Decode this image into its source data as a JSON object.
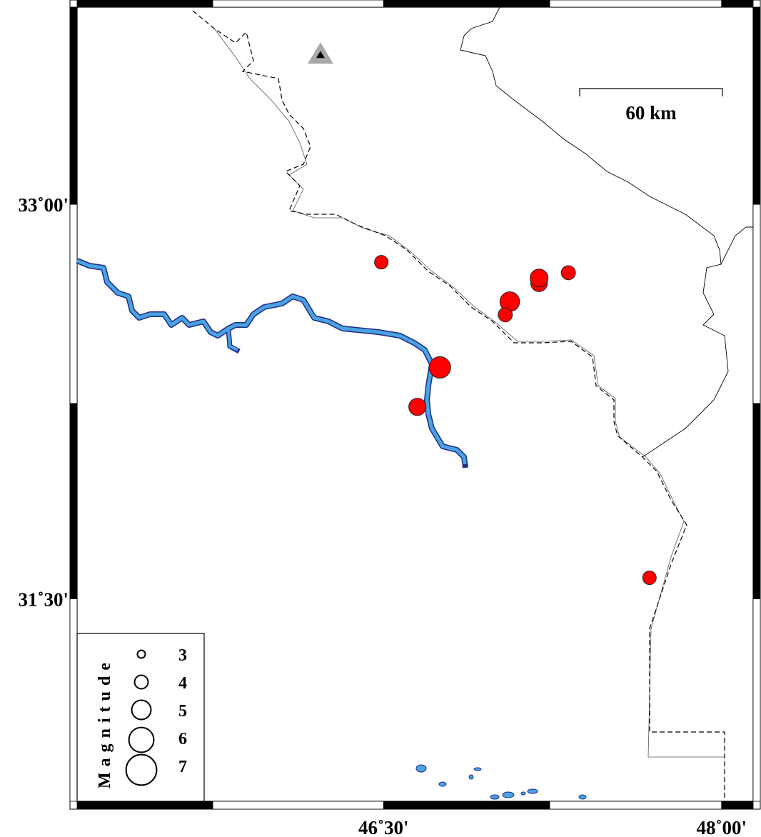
{
  "map": {
    "lon_range": [
      45.14,
      48.14
    ],
    "lat_range": [
      30.73,
      33.75
    ],
    "lon_ticks": [
      {
        "value": 46.5,
        "label": "46˚30'"
      },
      {
        "value": 48.0,
        "label": "48˚00'"
      }
    ],
    "lat_ticks": [
      {
        "value": 33.0,
        "label": "33˚00'"
      },
      {
        "value": 31.5,
        "label": "31˚30'"
      }
    ],
    "scale_bar": {
      "label": "60 km",
      "length_km": 60
    },
    "colors": {
      "event": "#ff0000",
      "river": "#4aa3e0",
      "river_outline": "#1f2a8a",
      "station": "#a9a9a9"
    }
  },
  "station": {
    "icon": "triangle-icon",
    "lon": 46.22,
    "lat": 33.57
  },
  "events": [
    {
      "lon": 46.49,
      "lat": 32.78,
      "mag": 3.0
    },
    {
      "lon": 46.75,
      "lat": 32.38,
      "mag": 4.3
    },
    {
      "lon": 46.65,
      "lat": 32.23,
      "mag": 3.6
    },
    {
      "lon": 47.06,
      "lat": 32.63,
      "mag": 4.0
    },
    {
      "lon": 47.04,
      "lat": 32.58,
      "mag": 3.1
    },
    {
      "lon": 47.19,
      "lat": 32.7,
      "mag": 3.5
    },
    {
      "lon": 47.19,
      "lat": 32.72,
      "mag": 3.7
    },
    {
      "lon": 47.32,
      "lat": 32.74,
      "mag": 3.1
    },
    {
      "lon": 47.68,
      "lat": 31.58,
      "mag": 3.0
    }
  ],
  "legend": {
    "title": "Magnitude",
    "entries": [
      {
        "label": "3",
        "mag": 3
      },
      {
        "label": "4",
        "mag": 4
      },
      {
        "label": "5",
        "mag": 5
      },
      {
        "label": "6",
        "mag": 6
      },
      {
        "label": "7",
        "mag": 7
      }
    ]
  }
}
